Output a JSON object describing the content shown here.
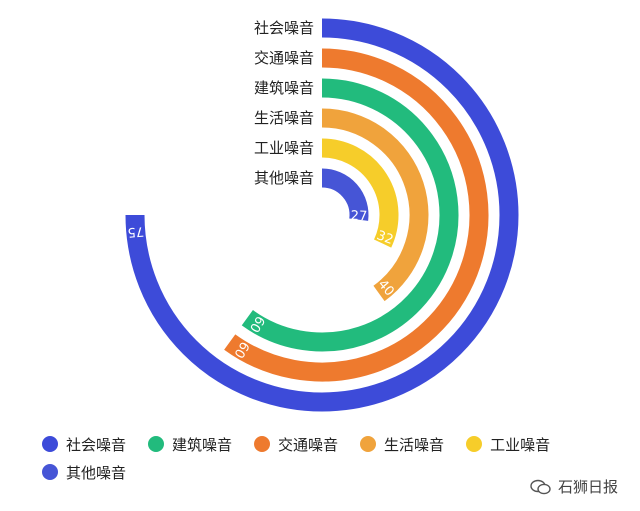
{
  "chart_data": {
    "type": "radial-bar",
    "max": 100,
    "series": [
      {
        "name": "社会噪音",
        "value": 75,
        "color": "#3d4bd9"
      },
      {
        "name": "交通噪音",
        "value": 60,
        "color": "#ee7a2e"
      },
      {
        "name": "建筑噪音",
        "value": 60,
        "color": "#22bb7d"
      },
      {
        "name": "生活噪音",
        "value": 40,
        "color": "#f0a33c"
      },
      {
        "name": "工业噪音",
        "value": 32,
        "color": "#f6cd2a"
      },
      {
        "name": "其他噪音",
        "value": 27,
        "color": "#4655d6"
      }
    ],
    "legend_order": [
      "社会噪音",
      "建筑噪音",
      "交通噪音",
      "生活噪音",
      "工业噪音",
      "其他噪音"
    ],
    "legend_placement": "bottom"
  },
  "watermark": {
    "text": "石狮日报"
  }
}
